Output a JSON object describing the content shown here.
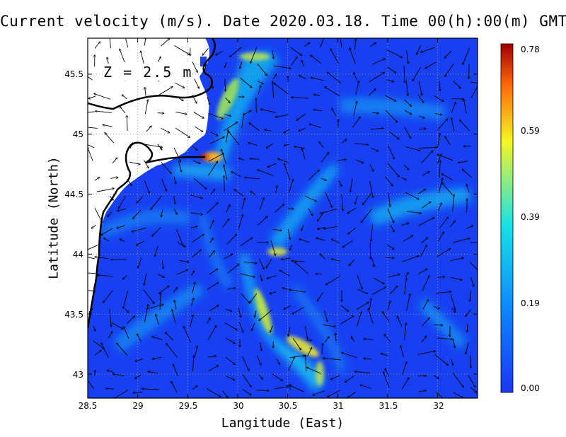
{
  "title": "Current velocity (m/s). Date 2020.03.18. Time 00(h):00(m) GMT",
  "depth_label": "Z = 2.5 m",
  "chart_data": {
    "type": "map",
    "variable": "Current velocity (m/s)",
    "date": "2020.03.18",
    "time": "00(h):00(m) GMT",
    "depth": "Z = 2.5 m",
    "xlabel": "Langitude (East)",
    "ylabel": "Latitude (North)",
    "xlim": [
      28.5,
      32.4
    ],
    "ylim": [
      42.8,
      45.8
    ],
    "x_ticks": [
      "28.5",
      "29",
      "29.5",
      "30",
      "30.5",
      "31",
      "31.5",
      "32"
    ],
    "y_ticks": [
      "43",
      "43.5",
      "44",
      "44.5",
      "45",
      "45.5"
    ],
    "grid": true,
    "colorbar": {
      "min": 0.0,
      "max": 0.78,
      "tick_labels": [
        "0.00",
        "0.19",
        "0.39",
        "0.59",
        "0.78"
      ],
      "colors": [
        "#1a36f5",
        "#0d80ff",
        "#16e2e8",
        "#f6f622",
        "#ff6a0a",
        "#a00000"
      ]
    },
    "land_color": "#ffffff",
    "coastline_color": "#000000"
  }
}
